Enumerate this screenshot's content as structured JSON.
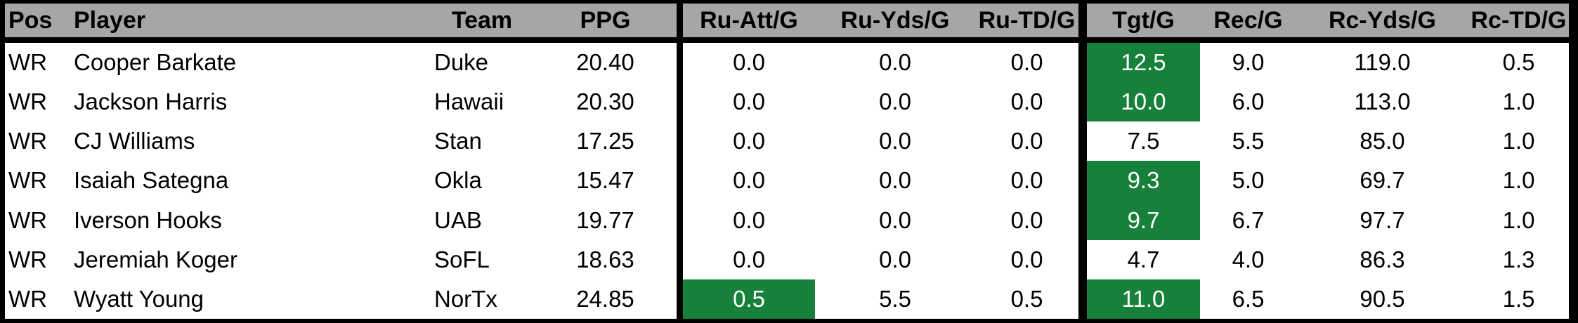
{
  "app": {
    "description_label": "Wide receiver per-game stats table",
    "position_group": "WR"
  },
  "colors": {
    "header_bg": "#A6A6A6",
    "header_text": "#000000",
    "body_bg": "#FFFFFF",
    "body_text": "#000000",
    "border": "#000000",
    "highlight_bg": "#17813B",
    "highlight_text": "#FFFFFF"
  },
  "headers": {
    "pos": "Pos",
    "player": "Player",
    "team": "Team",
    "ppg": "PPG",
    "ru_att": "Ru-Att/G",
    "ru_yds": "Ru-Yds/G",
    "ru_td": "Ru-TD/G",
    "tgt": "Tgt/G",
    "rec": "Rec/G",
    "rc_yds": "Rc-Yds/G",
    "rc_td": "Rc-TD/G"
  },
  "rows": [
    {
      "pos": "WR",
      "player": "Cooper Barkate",
      "team": "Duke",
      "ppg": "20.40",
      "ru_att": "0.0",
      "ru_yds": "0.0",
      "ru_td": "0.0",
      "tgt": "12.5",
      "rec": "9.0",
      "rc_yds": "119.0",
      "rc_td": "0.5"
    },
    {
      "pos": "WR",
      "player": "Jackson Harris",
      "team": "Hawaii",
      "ppg": "20.30",
      "ru_att": "0.0",
      "ru_yds": "0.0",
      "ru_td": "0.0",
      "tgt": "10.0",
      "rec": "6.0",
      "rc_yds": "113.0",
      "rc_td": "1.0"
    },
    {
      "pos": "WR",
      "player": "CJ Williams",
      "team": "Stan",
      "ppg": "17.25",
      "ru_att": "0.0",
      "ru_yds": "0.0",
      "ru_td": "0.0",
      "tgt": "7.5",
      "rec": "5.5",
      "rc_yds": "85.0",
      "rc_td": "1.0"
    },
    {
      "pos": "WR",
      "player": "Isaiah Sategna",
      "team": "Okla",
      "ppg": "15.47",
      "ru_att": "0.0",
      "ru_yds": "0.0",
      "ru_td": "0.0",
      "tgt": "9.3",
      "rec": "5.0",
      "rc_yds": "69.7",
      "rc_td": "1.0"
    },
    {
      "pos": "WR",
      "player": "Iverson Hooks",
      "team": "UAB",
      "ppg": "19.77",
      "ru_att": "0.0",
      "ru_yds": "0.0",
      "ru_td": "0.0",
      "tgt": "9.7",
      "rec": "6.7",
      "rc_yds": "97.7",
      "rc_td": "1.0"
    },
    {
      "pos": "WR",
      "player": "Jeremiah Koger",
      "team": "SoFL",
      "ppg": "18.63",
      "ru_att": "0.0",
      "ru_yds": "0.0",
      "ru_td": "0.0",
      "tgt": "4.7",
      "rec": "4.0",
      "rc_yds": "86.3",
      "rc_td": "1.3"
    },
    {
      "pos": "WR",
      "player": "Wyatt Young",
      "team": "NorTx",
      "ppg": "24.85",
      "ru_att": "0.5",
      "ru_yds": "5.5",
      "ru_td": "0.5",
      "tgt": "11.0",
      "rec": "6.5",
      "rc_yds": "90.5",
      "rc_td": "1.5"
    }
  ],
  "highlighted_cells": [
    {
      "row": 0,
      "column": "tgt"
    },
    {
      "row": 1,
      "column": "tgt"
    },
    {
      "row": 3,
      "column": "tgt"
    },
    {
      "row": 4,
      "column": "tgt"
    },
    {
      "row": 6,
      "column": "ru_att"
    },
    {
      "row": 6,
      "column": "tgt"
    }
  ]
}
